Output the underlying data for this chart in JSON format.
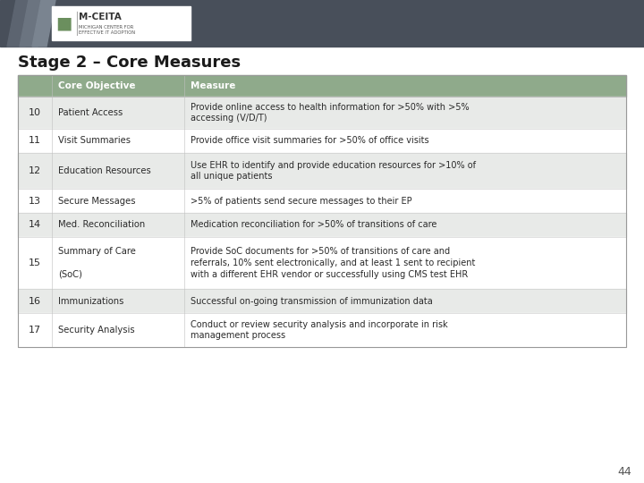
{
  "title": "Stage 2 – Core Measures",
  "header_bg": "#8faa8b",
  "header_text_color": "#ffffff",
  "odd_row_bg": "#ffffff",
  "even_row_bg": "#e8eae8",
  "slide_header_bg": "#484f5a",
  "page_number": "44",
  "font_color": "#2a2a2a",
  "col_header": "Core Objective",
  "col_measure": "Measure",
  "rows": [
    {
      "num": "10",
      "objective": "Patient Access",
      "measure": "Provide online access to health information for >50% with >5%\naccessing (V/D/T)"
    },
    {
      "num": "11",
      "objective": "Visit Summaries",
      "measure": "Provide office visit summaries for >50% of office visits"
    },
    {
      "num": "12",
      "objective": "Education Resources",
      "measure": "Use EHR to identify and provide education resources for >10% of\nall unique patients"
    },
    {
      "num": "13",
      "objective": "Secure Messages",
      "measure": ">5% of patients send secure messages to their EP"
    },
    {
      "num": "14",
      "objective": "Med. Reconciliation",
      "measure": "Medication reconciliation for >50% of transitions of care"
    },
    {
      "num": "15",
      "objective": "Summary of Care\n\n(SoC)",
      "measure": "Provide SoC documents for >50% of transitions of care and\nreferrals, 10% sent electronically, and at least 1 sent to recipient\nwith a different EHR vendor or successfully using CMS test EHR"
    },
    {
      "num": "16",
      "objective": "Immunizations",
      "measure": "Successful on-going transmission of immunization data"
    },
    {
      "num": "17",
      "objective": "Security Analysis",
      "measure": "Conduct or review security analysis and incorporate in risk\nmanagement process"
    }
  ]
}
